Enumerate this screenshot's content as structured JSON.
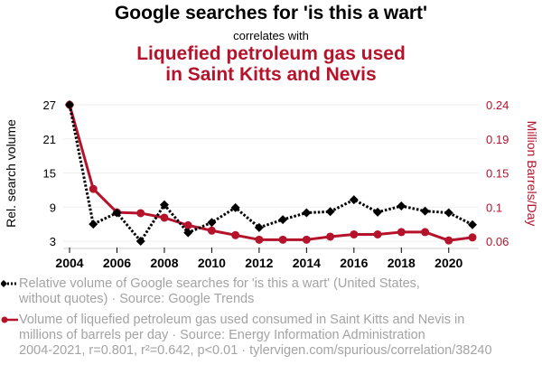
{
  "header": {
    "title": "Google searches for 'is this a wart'",
    "subtitle": "correlates with",
    "title2_line1": "Liquefied petroleum gas used",
    "title2_line2": "in Saint Kitts and Nevis"
  },
  "colors": {
    "series1": "#000000",
    "series2": "#b5132b",
    "legend_text": "#a3a3a3",
    "grid": "#efefef"
  },
  "legend": {
    "series1": [
      "Relative volume of Google searches for 'is this a wart' (United States,",
      "without quotes) · Source: Google Trends"
    ],
    "series2": [
      "Volume of liquefied petroleum gas used consumed in Saint Kitts and Nevis in",
      "millions of barrels per day · Source: Energy Information Administration"
    ]
  },
  "footer": "2004-2021, r=0.801, r²=0.642, p<0.01 · tylervigen.com/spurious/correlation/38240",
  "chart_data": {
    "type": "line",
    "title": "Google searches for 'is this a wart' correlates with Liquefied petroleum gas used in Saint Kitts and Nevis",
    "x": [
      2004,
      2005,
      2006,
      2007,
      2008,
      2009,
      2010,
      2011,
      2012,
      2013,
      2014,
      2015,
      2016,
      2017,
      2018,
      2019,
      2020,
      2021
    ],
    "xticks": [
      "2004",
      "2006",
      "2008",
      "2010",
      "2012",
      "2014",
      "2016",
      "2018",
      "2020"
    ],
    "xlim": [
      2004,
      2021
    ],
    "series": [
      {
        "name": "Relative volume of Google searches for 'is this a wart' (United States, without quotes)",
        "axis": "left",
        "style": "dotted-diamond",
        "values": [
          27,
          6,
          8,
          3,
          9.4,
          4.5,
          6.3,
          8.9,
          5.4,
          6.8,
          8,
          8.2,
          10.3,
          8.1,
          9.2,
          8.3,
          8,
          5.9
        ]
      },
      {
        "name": "Volume of liquefied petroleum gas used consumed in Saint Kitts and Nevis (million barrels/day)",
        "axis": "right",
        "style": "solid-circle",
        "values": [
          0.24,
          0.129,
          0.098,
          0.097,
          0.091,
          0.081,
          0.074,
          0.068,
          0.062,
          0.062,
          0.062,
          0.066,
          0.069,
          0.069,
          0.072,
          0.072,
          0.061,
          0.065
        ]
      }
    ],
    "left_axis": {
      "label": "Rel. search volume",
      "ticks": [
        "27",
        "21",
        "15",
        "9",
        "3"
      ],
      "tick_values": [
        27,
        21,
        15,
        9,
        3
      ],
      "ylim": [
        3,
        27
      ]
    },
    "right_axis": {
      "label": "Million Barrels/Day",
      "ticks": [
        "0.24",
        "0.19",
        "0.15",
        "0.1",
        "0.06"
      ],
      "tick_values": [
        0.24,
        0.195,
        0.15,
        0.105,
        0.06
      ],
      "ylim": [
        0.06,
        0.24
      ]
    },
    "grid": true,
    "legend_position": "bottom"
  }
}
